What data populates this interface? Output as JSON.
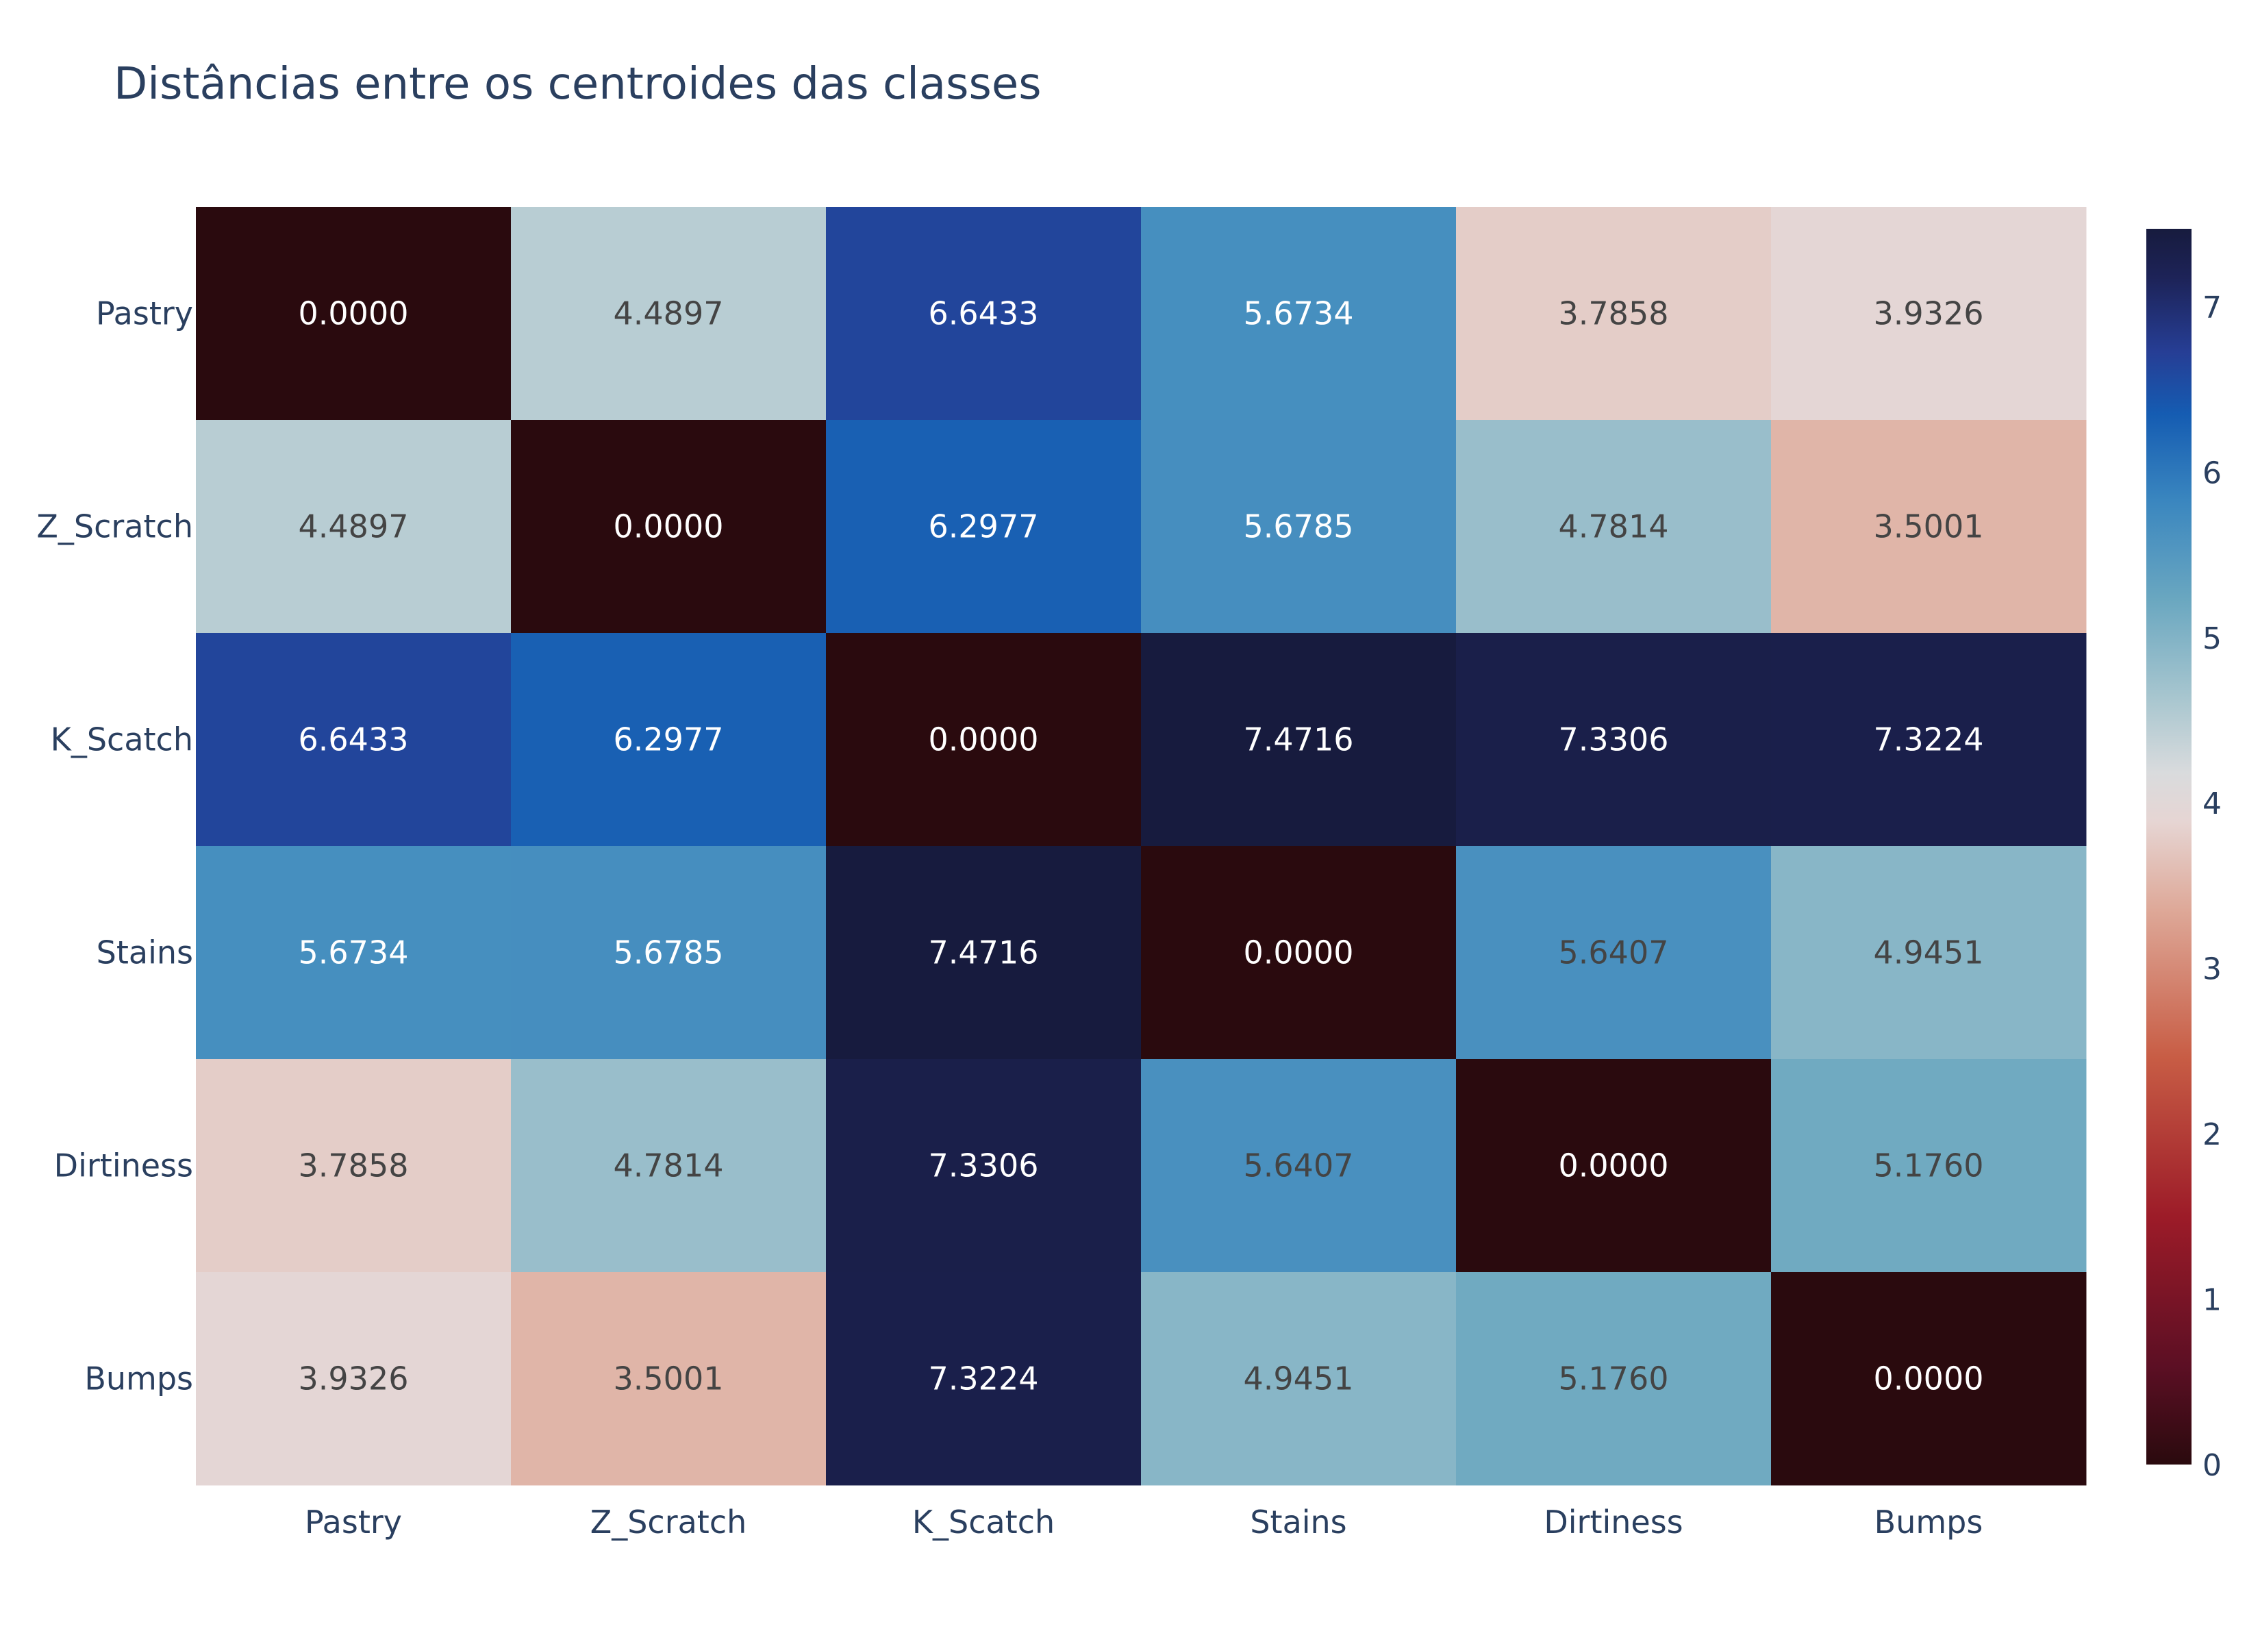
{
  "chart_data": {
    "type": "heatmap",
    "title": "Distâncias entre os centroides das classes",
    "x_categories": [
      "Pastry",
      "Z_Scratch",
      "K_Scatch",
      "Stains",
      "Dirtiness",
      "Bumps"
    ],
    "y_categories": [
      "Pastry",
      "Z_Scratch",
      "K_Scatch",
      "Stains",
      "Dirtiness",
      "Bumps"
    ],
    "z": [
      [
        0.0,
        4.4897,
        6.6433,
        5.6734,
        3.7858,
        3.9326
      ],
      [
        4.4897,
        0.0,
        6.2977,
        5.6785,
        4.7814,
        3.5001
      ],
      [
        6.6433,
        6.2977,
        0.0,
        7.4716,
        7.3306,
        7.3224
      ],
      [
        5.6734,
        5.6785,
        7.4716,
        0.0,
        5.6407,
        4.9451
      ],
      [
        3.7858,
        4.7814,
        7.3306,
        5.6407,
        0.0,
        5.176
      ],
      [
        3.9326,
        3.5001,
        7.3224,
        4.9451,
        5.176,
        0.0
      ]
    ],
    "text_format": "4 decimals",
    "colorscale_name": "balance",
    "colorscale": [
      [
        0.0,
        "#2a0a0e"
      ],
      [
        0.08,
        "#5c0f24"
      ],
      [
        0.2,
        "#9c1b28"
      ],
      [
        0.33,
        "#c85d45"
      ],
      [
        0.45,
        "#dea999"
      ],
      [
        0.52,
        "#e6d5d3"
      ],
      [
        0.56,
        "#d9dbdd"
      ],
      [
        0.62,
        "#a8c6cf"
      ],
      [
        0.7,
        "#6aa7c0"
      ],
      [
        0.78,
        "#3a86bf"
      ],
      [
        0.85,
        "#155cb2"
      ],
      [
        0.9,
        "#263e95"
      ],
      [
        0.96,
        "#1d2358"
      ],
      [
        1.0,
        "#171b3e"
      ]
    ],
    "zmin": 0,
    "zmax": 7.4716,
    "colorbar_ticks": [
      "0",
      "1",
      "2",
      "3",
      "4",
      "5",
      "6",
      "7"
    ],
    "colors": {
      "text_dark": "#444444",
      "text_light": "#ffffff",
      "axis_text": "#2a3f5f"
    }
  }
}
